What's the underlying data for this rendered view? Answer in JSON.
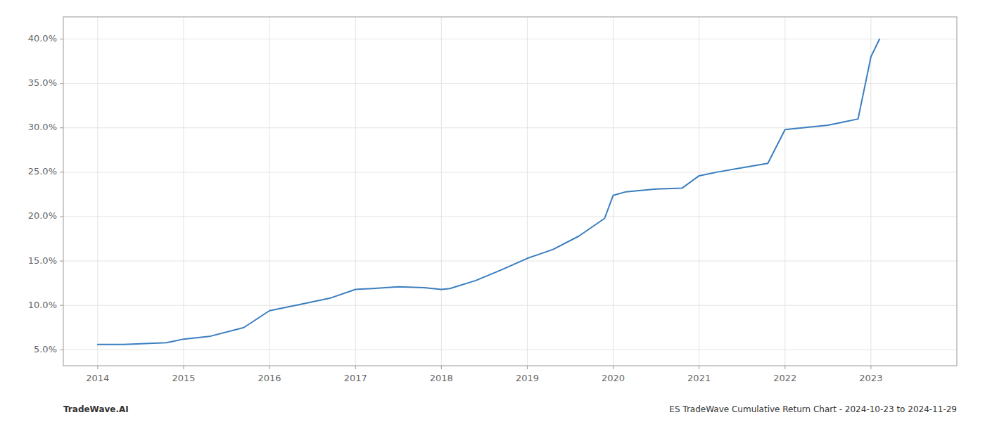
{
  "chart_data": {
    "type": "line",
    "x": [
      2014.0,
      2014.3,
      2014.8,
      2015.0,
      2015.3,
      2015.7,
      2016.0,
      2016.3,
      2016.7,
      2017.0,
      2017.2,
      2017.5,
      2017.8,
      2018.0,
      2018.1,
      2018.4,
      2018.7,
      2019.0,
      2019.3,
      2019.6,
      2019.9,
      2020.0,
      2020.15,
      2020.5,
      2020.8,
      2021.0,
      2021.2,
      2021.5,
      2021.8,
      2022.0,
      2022.2,
      2022.5,
      2022.7,
      2022.85,
      2023.0,
      2023.1
    ],
    "values": [
      0.056,
      0.056,
      0.058,
      0.062,
      0.065,
      0.075,
      0.094,
      0.1,
      0.108,
      0.118,
      0.119,
      0.121,
      0.12,
      0.118,
      0.119,
      0.128,
      0.14,
      0.153,
      0.163,
      0.178,
      0.198,
      0.224,
      0.228,
      0.231,
      0.232,
      0.246,
      0.25,
      0.255,
      0.26,
      0.298,
      0.3,
      0.303,
      0.307,
      0.31,
      0.38,
      0.4
    ],
    "color": "#3a7ebf",
    "xlim": [
      2013.6,
      2024.0
    ],
    "ylim": [
      0.032,
      0.425
    ],
    "xticks": [
      2014,
      2015,
      2016,
      2017,
      2018,
      2019,
      2020,
      2021,
      2022,
      2023
    ],
    "yticks": [
      {
        "value": 0.05,
        "label": "5.0%"
      },
      {
        "value": 0.1,
        "label": "10.0%"
      },
      {
        "value": 0.15,
        "label": "15.0%"
      },
      {
        "value": 0.2,
        "label": "20.0%"
      },
      {
        "value": 0.25,
        "label": "25.0%"
      },
      {
        "value": 0.3,
        "label": "30.0%"
      },
      {
        "value": 0.35,
        "label": "35.0%"
      },
      {
        "value": 0.4,
        "label": "40.0%"
      }
    ],
    "grid": true,
    "annotations": [
      "TradeWave.AI",
      "ES TradeWave Cumulative Return Chart - 2024-10-23 to 2024-11-29"
    ]
  }
}
